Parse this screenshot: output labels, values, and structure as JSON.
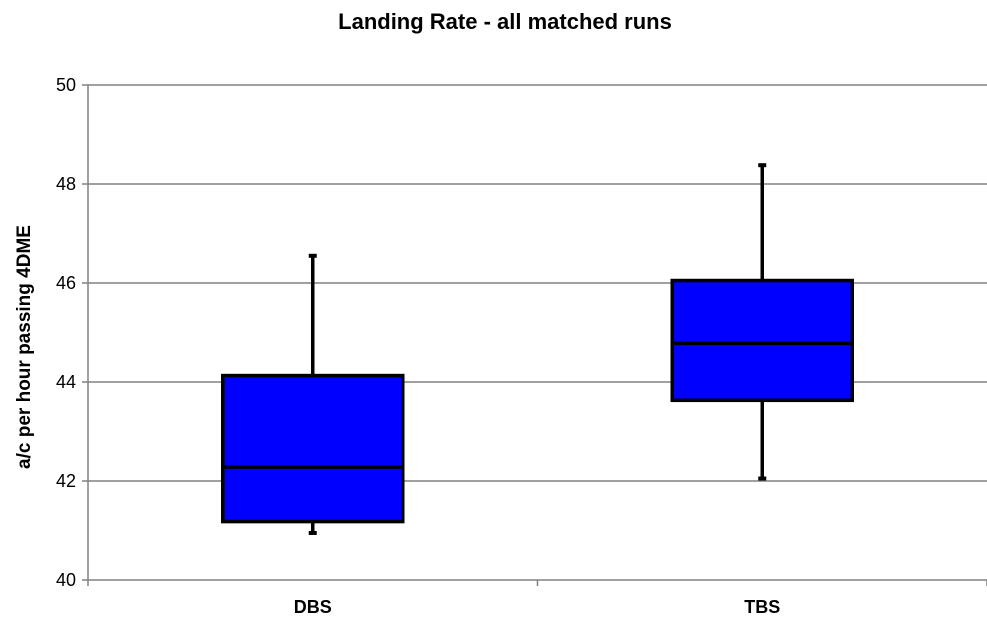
{
  "chart_data": {
    "type": "box",
    "title": "Landing Rate - all matched runs",
    "xlabel": "",
    "ylabel": "a/c per hour passing 4DME",
    "ylim": [
      40,
      50
    ],
    "yticks": [
      40,
      42,
      44,
      46,
      48,
      50
    ],
    "grid": true,
    "categories": [
      "DBS",
      "TBS"
    ],
    "boxes": [
      {
        "category": "DBS",
        "min": 40.95,
        "q1": 41.18,
        "median": 42.28,
        "q3": 44.13,
        "max": 46.55
      },
      {
        "category": "TBS",
        "min": 42.05,
        "q1": 43.63,
        "median": 44.78,
        "q3": 46.05,
        "max": 48.38
      }
    ],
    "colors": {
      "box_fill": "#0000FF",
      "box_stroke": "#000000",
      "grid": "#808080",
      "axis": "#808080"
    }
  }
}
